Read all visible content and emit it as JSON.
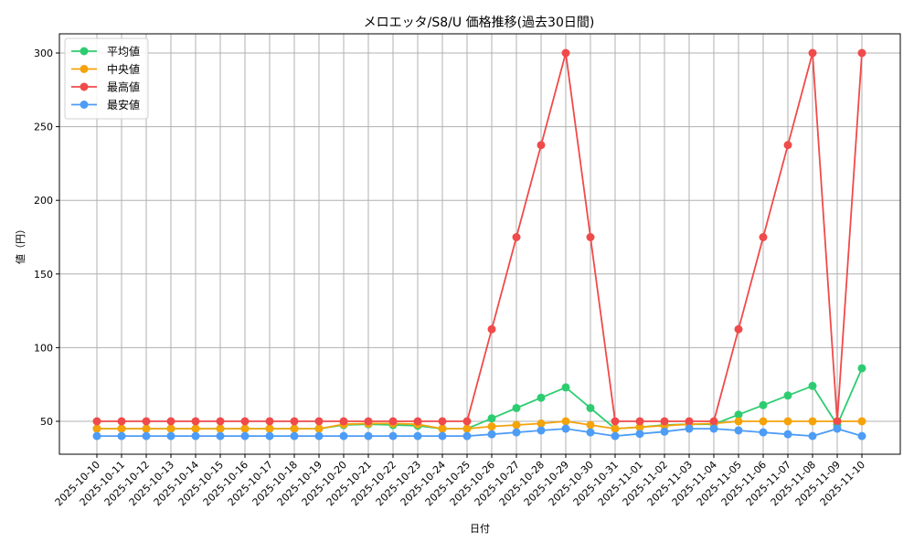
{
  "chart_data": {
    "type": "line",
    "title": "メロエッタ/S8/U 価格推移(過去30日間)",
    "xlabel": "日付",
    "ylabel": "値（円）",
    "ylim": [
      26,
      313
    ],
    "yticks": [
      50,
      100,
      150,
      200,
      250,
      300
    ],
    "grid": true,
    "legend_position": "upper left",
    "categories": [
      "2025-10-10",
      "2025-10-11",
      "2025-10-12",
      "2025-10-13",
      "2025-10-14",
      "2025-10-15",
      "2025-10-16",
      "2025-10-17",
      "2025-10-18",
      "2025-10-19",
      "2025-10-20",
      "2025-10-21",
      "2025-10-22",
      "2025-10-23",
      "2025-10-24",
      "2025-10-25",
      "2025-10-26",
      "2025-10-27",
      "2025-10-28",
      "2025-10-29",
      "2025-10-30",
      "2025-10-31",
      "2025-11-01",
      "2025-11-02",
      "2025-11-03",
      "2025-11-04",
      "2025-11-05",
      "2025-11-06",
      "2025-11-07",
      "2025-11-08",
      "2025-11-09",
      "2025-11-10"
    ],
    "series": [
      {
        "name": "平均値",
        "color": "#2ecc71",
        "values": [
          45,
          45,
          45,
          45,
          45,
          45,
          45,
          45,
          45,
          45,
          47.5,
          48,
          47.5,
          47,
          45,
          45,
          52,
          59,
          66,
          73,
          59,
          45,
          46,
          47.5,
          48,
          48,
          54.5,
          61,
          67.5,
          74,
          47.5,
          86
        ]
      },
      {
        "name": "中央値",
        "color": "#f5a30b",
        "values": [
          45,
          45,
          45,
          45,
          45,
          45,
          45,
          45,
          45,
          45,
          48,
          48.5,
          48.5,
          48,
          45,
          45,
          46.5,
          47.5,
          48.5,
          50,
          47.5,
          45,
          46,
          47,
          48,
          48.5,
          50,
          50,
          50,
          50,
          50,
          50
        ]
      },
      {
        "name": "最高値",
        "color": "#f04a4a",
        "values": [
          50,
          50,
          50,
          50,
          50,
          50,
          50,
          50,
          50,
          50,
          50,
          50,
          50,
          50,
          50,
          50,
          112.5,
          175,
          237.5,
          300,
          175,
          50,
          50,
          50,
          50,
          50,
          112.5,
          175,
          237.5,
          300,
          50,
          300
        ]
      },
      {
        "name": "最安値",
        "color": "#4d9cf5",
        "values": [
          40,
          40,
          40,
          40,
          40,
          40,
          40,
          40,
          40,
          40,
          40,
          40,
          40,
          40,
          40,
          40,
          41.2,
          42.5,
          43.8,
          45,
          42.5,
          40,
          41.5,
          43,
          45,
          45,
          43.8,
          42.5,
          41.2,
          40,
          45,
          40
        ]
      }
    ]
  }
}
